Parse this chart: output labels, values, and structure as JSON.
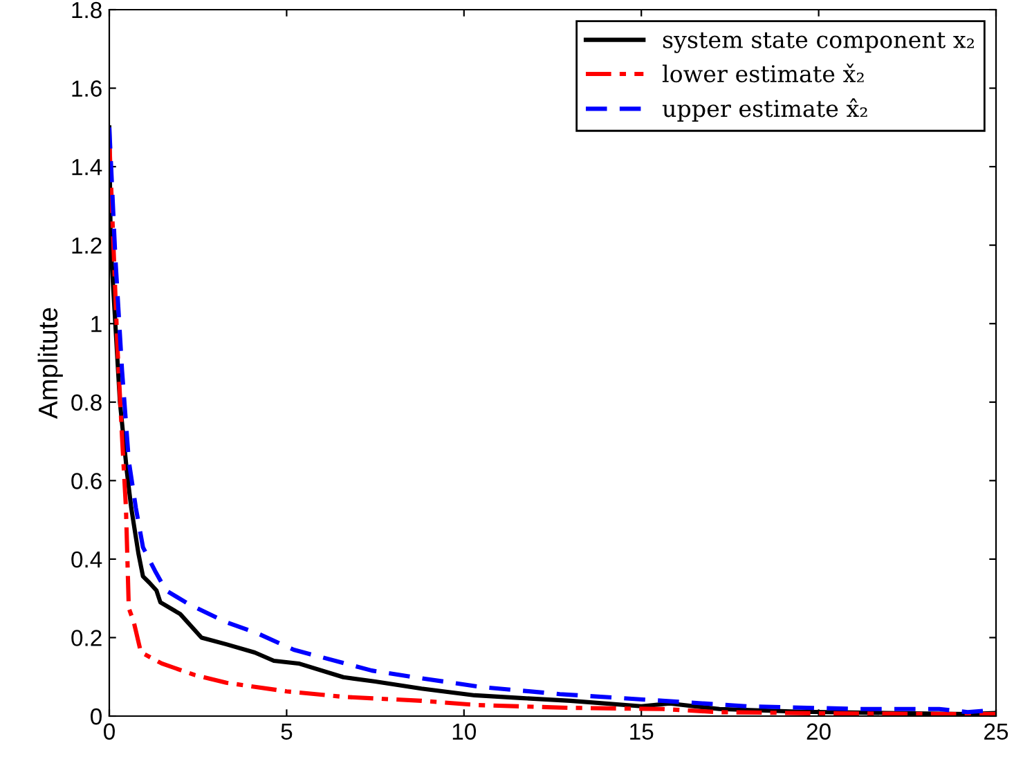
{
  "chart_data": {
    "type": "line",
    "ylabel": "Amplitute",
    "xlim": [
      0,
      25
    ],
    "ylim": [
      0,
      1.8
    ],
    "xticks": [
      0,
      5,
      10,
      15,
      20,
      25
    ],
    "yticks": [
      0,
      0.2,
      0.4,
      0.6,
      0.8,
      1,
      1.2,
      1.4,
      1.6,
      1.8
    ],
    "grid": false,
    "legend": "top right",
    "marker": "none",
    "series": [
      {
        "name": "system state component x₂",
        "color": "#000000",
        "line_style": "solid",
        "x": [
          0,
          0.04,
          0.3,
          0.5,
          0.62,
          0.82,
          0.95,
          1.13,
          1.33,
          1.44,
          2.0,
          2.6,
          3.3,
          4.1,
          4.64,
          5.34,
          6.6,
          7.5,
          8.8,
          10.3,
          11.6,
          13.0,
          15.0,
          15.8,
          17.2,
          19.5,
          21.9,
          24.2,
          25
        ],
        "values": [
          1.5,
          1.2,
          0.8,
          0.62,
          0.53,
          0.415,
          0.356,
          0.34,
          0.32,
          0.29,
          0.26,
          0.2,
          0.183,
          0.162,
          0.141,
          0.134,
          0.099,
          0.088,
          0.07,
          0.053,
          0.046,
          0.039,
          0.025,
          0.032,
          0.018,
          0.011,
          0.008,
          0.005,
          0.008
        ]
      },
      {
        "name": "lower estimate x̌₂",
        "color": "#ff0000",
        "line_style": "dashdot",
        "x": [
          0,
          0.1,
          0.23,
          0.36,
          0.47,
          0.55,
          0.69,
          0.89,
          1.13,
          1.48,
          2.4,
          3.3,
          5.0,
          6.6,
          8.8,
          10.4,
          13.0,
          15.6,
          17.2,
          20.0,
          22.0,
          25
        ],
        "values": [
          1.47,
          1.24,
          0.94,
          0.71,
          0.53,
          0.275,
          0.24,
          0.163,
          0.151,
          0.134,
          0.105,
          0.085,
          0.063,
          0.049,
          0.039,
          0.028,
          0.021,
          0.018,
          0.01,
          0.007,
          0.006,
          0.005
        ]
      },
      {
        "name": "upper estimate x̂₂",
        "color": "#0000ff",
        "line_style": "dashed",
        "x": [
          0,
          0.17,
          0.36,
          0.55,
          0.75,
          0.95,
          1.29,
          1.6,
          2.25,
          3.28,
          4.2,
          5.2,
          7.4,
          8.6,
          10.5,
          12.7,
          15.6,
          18.0,
          21.1,
          23.4,
          24.2,
          25
        ],
        "values": [
          1.5,
          1.17,
          0.88,
          0.65,
          0.53,
          0.43,
          0.37,
          0.32,
          0.285,
          0.24,
          0.21,
          0.169,
          0.116,
          0.099,
          0.074,
          0.056,
          0.039,
          0.025,
          0.018,
          0.018,
          0.01,
          0.016
        ]
      }
    ]
  }
}
